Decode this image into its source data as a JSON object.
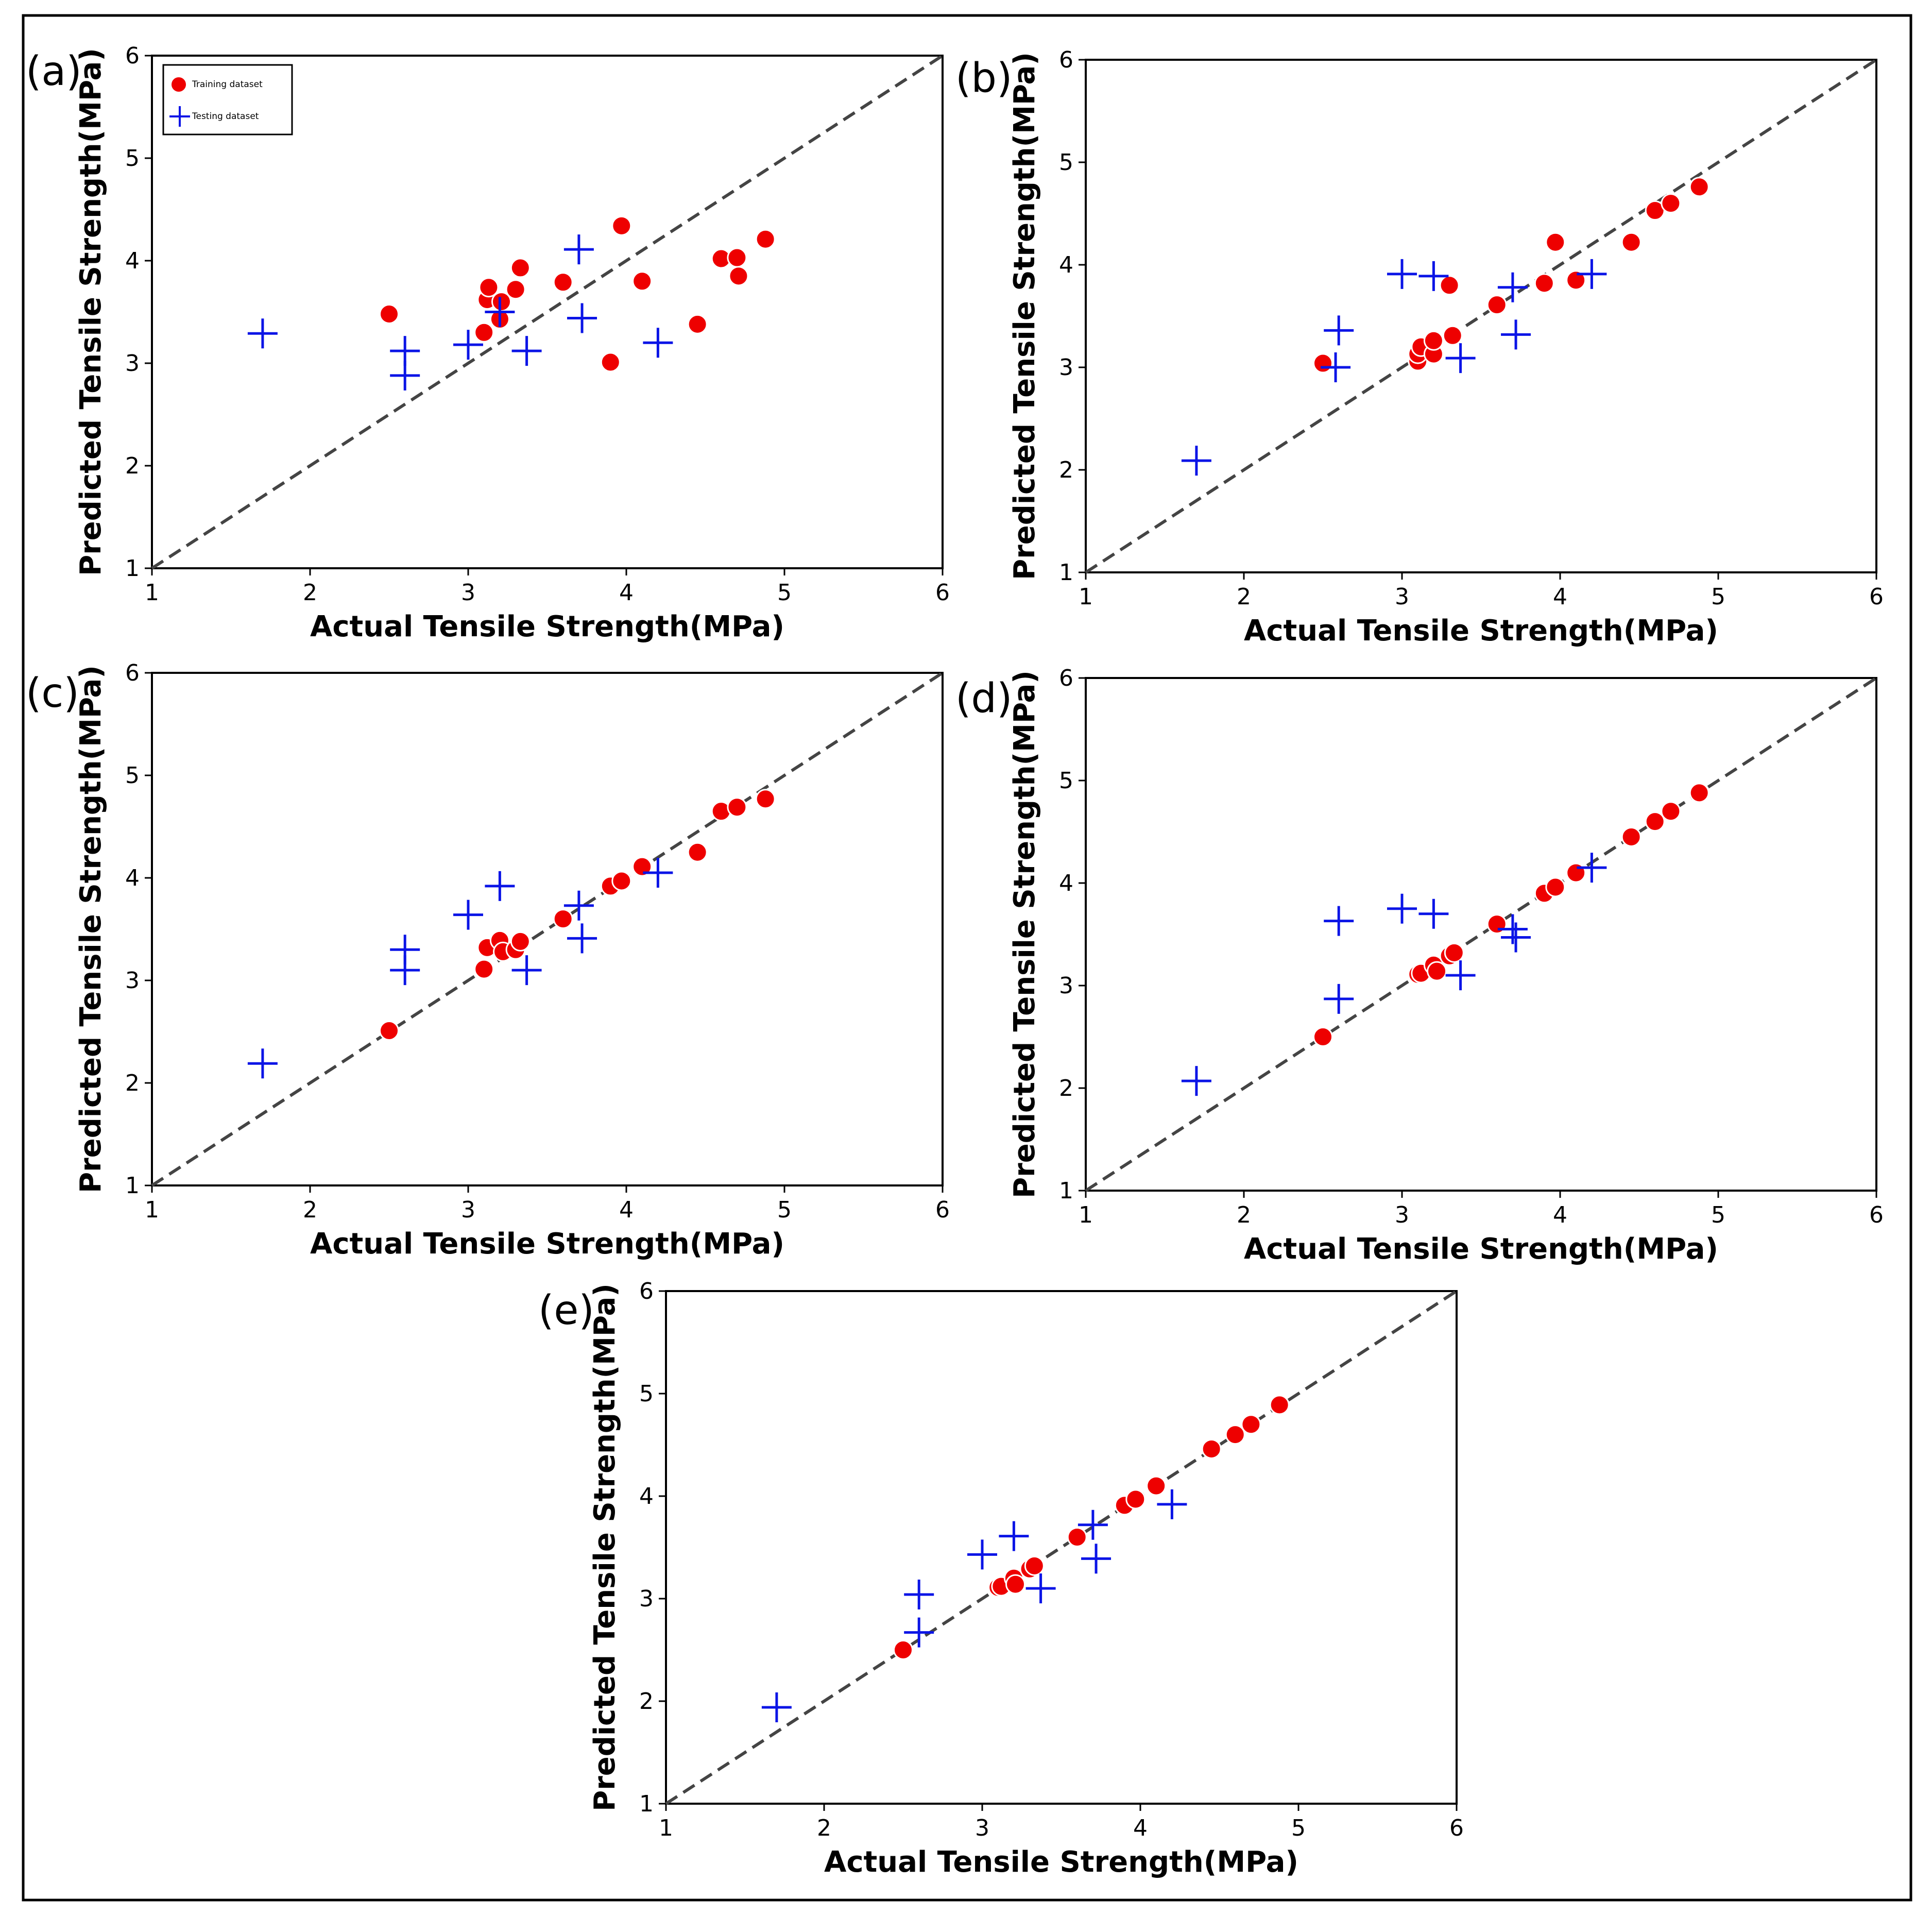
{
  "colors": {
    "training": "#ee0000",
    "testing": "#0a14e6",
    "diagonal": "#444444"
  },
  "chart_data": [
    {
      "panel": "(a)",
      "type": "scatter",
      "xlabel": "Actual Tensile Strength(MPa)",
      "ylabel": "Predicted Tensile Strength(MPa)",
      "xlim": [
        1,
        6
      ],
      "ylim": [
        1,
        6
      ],
      "xticks": [
        1,
        2,
        3,
        4,
        5,
        6
      ],
      "yticks": [
        1,
        2,
        3,
        4,
        5,
        6
      ],
      "legend": {
        "position": "top-left",
        "training_label": "Training dataset",
        "testing_label": "Testing dataset"
      },
      "series": [
        {
          "name": "Training dataset",
          "x": [
            2.5,
            3.1,
            3.12,
            3.13,
            3.2,
            3.21,
            3.3,
            3.33,
            3.6,
            3.9,
            3.97,
            4.1,
            4.45,
            4.6,
            4.7,
            4.71,
            4.88
          ],
          "y": [
            3.48,
            3.3,
            3.62,
            3.74,
            3.43,
            3.6,
            3.72,
            3.93,
            3.79,
            3.01,
            4.34,
            3.8,
            3.38,
            4.02,
            4.03,
            3.85,
            4.21
          ]
        },
        {
          "name": "Testing dataset",
          "x": [
            1.7,
            2.6,
            2.6,
            3.0,
            3.2,
            3.37,
            3.7,
            3.72,
            4.2
          ],
          "y": [
            3.29,
            2.88,
            3.12,
            3.18,
            3.5,
            3.12,
            4.11,
            3.44,
            3.2
          ]
        }
      ]
    },
    {
      "panel": "(b)",
      "type": "scatter",
      "xlabel": "Actual Tensile Strength(MPa)",
      "ylabel": "Predicted Tensile Strength(MPa)",
      "xlim": [
        1,
        6
      ],
      "ylim": [
        1,
        6
      ],
      "xticks": [
        1,
        2,
        3,
        4,
        5,
        6
      ],
      "yticks": [
        1,
        2,
        3,
        4,
        5,
        6
      ],
      "series": [
        {
          "name": "Training dataset",
          "x": [
            2.5,
            3.1,
            3.1,
            3.12,
            3.2,
            3.2,
            3.3,
            3.32,
            3.6,
            3.9,
            3.97,
            4.1,
            4.45,
            4.6,
            4.7,
            4.88
          ],
          "y": [
            3.04,
            3.06,
            3.13,
            3.2,
            3.13,
            3.26,
            3.8,
            3.31,
            3.61,
            3.82,
            4.22,
            3.85,
            4.22,
            4.53,
            4.6,
            4.76
          ]
        },
        {
          "name": "Testing dataset",
          "x": [
            1.7,
            2.58,
            2.6,
            3.0,
            3.2,
            3.37,
            3.7,
            3.72,
            4.2
          ],
          "y": [
            2.09,
            3.0,
            3.36,
            3.91,
            3.89,
            3.09,
            3.78,
            3.32,
            3.91
          ]
        }
      ]
    },
    {
      "panel": "(c)",
      "type": "scatter",
      "xlabel": "Actual Tensile Strength(MPa)",
      "ylabel": "Predicted Tensile Strength(MPa)",
      "xlim": [
        1,
        6
      ],
      "ylim": [
        1,
        6
      ],
      "xticks": [
        1,
        2,
        3,
        4,
        5,
        6
      ],
      "yticks": [
        1,
        2,
        3,
        4,
        5,
        6
      ],
      "series": [
        {
          "name": "Training dataset",
          "x": [
            2.5,
            3.1,
            3.12,
            3.2,
            3.22,
            3.3,
            3.33,
            3.6,
            3.9,
            3.97,
            4.1,
            4.45,
            4.6,
            4.7,
            4.88
          ],
          "y": [
            2.51,
            3.11,
            3.32,
            3.39,
            3.28,
            3.3,
            3.38,
            3.6,
            3.92,
            3.97,
            4.11,
            4.25,
            4.65,
            4.69,
            4.77
          ]
        },
        {
          "name": "Testing dataset",
          "x": [
            1.7,
            2.6,
            2.6,
            3.0,
            3.2,
            3.37,
            3.7,
            3.72,
            4.2
          ],
          "y": [
            2.19,
            3.3,
            3.1,
            3.64,
            3.92,
            3.1,
            3.73,
            3.41,
            4.05
          ]
        }
      ]
    },
    {
      "panel": "(d)",
      "type": "scatter",
      "xlabel": "Actual Tensile Strength(MPa)",
      "ylabel": "Predicted Tensile Strength(MPa)",
      "xlim": [
        1,
        6
      ],
      "ylim": [
        1,
        6
      ],
      "xticks": [
        1,
        2,
        3,
        4,
        5,
        6
      ],
      "yticks": [
        1,
        2,
        3,
        4,
        5,
        6
      ],
      "series": [
        {
          "name": "Training dataset",
          "x": [
            2.5,
            3.1,
            3.12,
            3.2,
            3.22,
            3.3,
            3.33,
            3.6,
            3.9,
            3.97,
            4.1,
            4.45,
            4.6,
            4.7,
            4.88
          ],
          "y": [
            2.5,
            3.11,
            3.12,
            3.2,
            3.14,
            3.29,
            3.32,
            3.6,
            3.9,
            3.96,
            4.1,
            4.45,
            4.6,
            4.7,
            4.88
          ]
        },
        {
          "name": "Testing dataset",
          "x": [
            1.7,
            2.6,
            2.6,
            3.0,
            3.2,
            3.37,
            3.7,
            3.72,
            4.2
          ],
          "y": [
            2.07,
            2.87,
            3.63,
            3.75,
            3.7,
            3.1,
            3.55,
            3.47,
            4.15
          ]
        }
      ]
    },
    {
      "panel": "(e)",
      "type": "scatter",
      "xlabel": "Actual Tensile Strength(MPa)",
      "ylabel": "Predicted Tensile Strength(MPa)",
      "xlim": [
        1,
        6
      ],
      "ylim": [
        1,
        6
      ],
      "xticks": [
        1,
        2,
        3,
        4,
        5,
        6
      ],
      "yticks": [
        1,
        2,
        3,
        4,
        5,
        6
      ],
      "series": [
        {
          "name": "Training dataset",
          "x": [
            2.5,
            3.1,
            3.12,
            3.2,
            3.21,
            3.3,
            3.33,
            3.6,
            3.9,
            3.97,
            4.1,
            4.45,
            4.6,
            4.7,
            4.88
          ],
          "y": [
            2.5,
            3.11,
            3.12,
            3.2,
            3.14,
            3.29,
            3.32,
            3.6,
            3.91,
            3.97,
            4.1,
            4.46,
            4.6,
            4.7,
            4.89
          ]
        },
        {
          "name": "Testing dataset",
          "x": [
            1.7,
            2.6,
            2.6,
            3.0,
            3.2,
            3.37,
            3.7,
            3.72,
            4.2
          ],
          "y": [
            1.94,
            2.67,
            3.04,
            3.43,
            3.61,
            3.1,
            3.72,
            3.39,
            3.92
          ]
        }
      ]
    }
  ]
}
